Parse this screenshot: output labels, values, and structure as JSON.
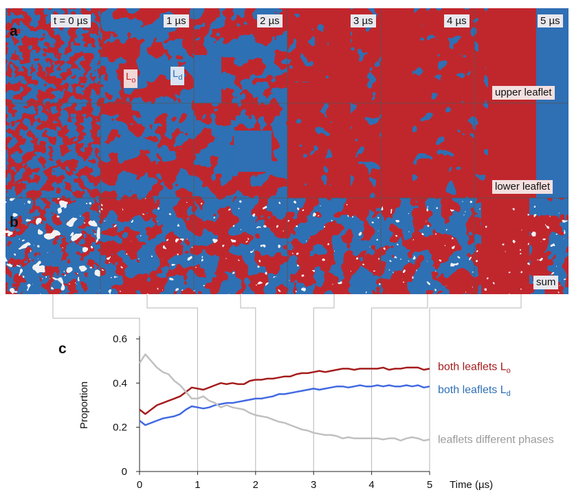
{
  "panels": {
    "a": "a",
    "b": "b",
    "c": "c"
  },
  "timepoints": [
    "t = 0 µs",
    "1 µs",
    "2 µs",
    "3 µs",
    "4 µs",
    "5 µs"
  ],
  "phases": {
    "lo": {
      "base": "L",
      "sub": "o"
    },
    "ld": {
      "base": "L",
      "sub": "d"
    }
  },
  "rows": {
    "upper": "upper leaflet",
    "lower": "lower leaflet",
    "sum": "sum"
  },
  "colors": {
    "lo_red": "#c0272d",
    "ld_blue": "#2f6fb4",
    "mixed_white": "#f2f2f2",
    "line_lo": "#a51c1c",
    "line_ld": "#4169e1",
    "line_diff": "#c0c0c0",
    "label_lo": "#a51c1c",
    "label_ld": "#2f6fb4",
    "label_diff": "#9a9a9a"
  },
  "chart_data": {
    "type": "line",
    "xlabel": "Time (µs)",
    "ylabel": "Proportion",
    "xlim": [
      0,
      5
    ],
    "ylim": [
      0,
      0.6
    ],
    "xticks": [
      "0",
      "1",
      "2",
      "3",
      "4",
      "5"
    ],
    "yticks": [
      "0",
      "0.2",
      "0.4",
      "0.6"
    ],
    "grid": false,
    "legend": "direct labels at line ends",
    "x": [
      0,
      0.1,
      0.2,
      0.3,
      0.4,
      0.5,
      0.6,
      0.7,
      0.8,
      0.9,
      1.0,
      1.1,
      1.2,
      1.3,
      1.4,
      1.5,
      1.6,
      1.7,
      1.8,
      1.9,
      2.0,
      2.1,
      2.2,
      2.3,
      2.4,
      2.5,
      2.6,
      2.7,
      2.8,
      2.9,
      3.0,
      3.1,
      3.2,
      3.3,
      3.4,
      3.5,
      3.6,
      3.7,
      3.8,
      3.9,
      4.0,
      4.1,
      4.2,
      4.3,
      4.4,
      4.5,
      4.6,
      4.7,
      4.8,
      4.9,
      5.0
    ],
    "series": [
      {
        "name_base": "both leaflets L",
        "name_sub": "o",
        "color_key": "line_lo",
        "values": [
          0.28,
          0.26,
          0.28,
          0.3,
          0.31,
          0.32,
          0.33,
          0.34,
          0.36,
          0.38,
          0.375,
          0.37,
          0.38,
          0.39,
          0.4,
          0.395,
          0.4,
          0.395,
          0.395,
          0.41,
          0.415,
          0.415,
          0.42,
          0.42,
          0.425,
          0.43,
          0.43,
          0.44,
          0.445,
          0.445,
          0.45,
          0.455,
          0.45,
          0.455,
          0.46,
          0.465,
          0.465,
          0.46,
          0.465,
          0.465,
          0.465,
          0.465,
          0.47,
          0.46,
          0.465,
          0.465,
          0.47,
          0.47,
          0.47,
          0.46,
          0.465
        ]
      },
      {
        "name_base": "both leaflets L",
        "name_sub": "d",
        "color_key": "line_ld",
        "values": [
          0.23,
          0.21,
          0.22,
          0.23,
          0.24,
          0.245,
          0.25,
          0.26,
          0.28,
          0.295,
          0.29,
          0.285,
          0.29,
          0.3,
          0.305,
          0.31,
          0.31,
          0.315,
          0.32,
          0.325,
          0.33,
          0.33,
          0.335,
          0.34,
          0.35,
          0.35,
          0.355,
          0.36,
          0.365,
          0.37,
          0.375,
          0.37,
          0.375,
          0.38,
          0.385,
          0.385,
          0.38,
          0.385,
          0.39,
          0.385,
          0.385,
          0.39,
          0.385,
          0.39,
          0.385,
          0.385,
          0.39,
          0.385,
          0.39,
          0.38,
          0.385
        ]
      },
      {
        "name": "leaflets different phases",
        "color_key": "line_diff",
        "values": [
          0.49,
          0.53,
          0.5,
          0.47,
          0.45,
          0.44,
          0.41,
          0.39,
          0.36,
          0.33,
          0.33,
          0.34,
          0.32,
          0.31,
          0.29,
          0.3,
          0.29,
          0.285,
          0.28,
          0.265,
          0.255,
          0.25,
          0.245,
          0.235,
          0.225,
          0.22,
          0.21,
          0.2,
          0.19,
          0.185,
          0.175,
          0.17,
          0.165,
          0.165,
          0.16,
          0.15,
          0.155,
          0.15,
          0.15,
          0.15,
          0.15,
          0.15,
          0.145,
          0.15,
          0.15,
          0.14,
          0.15,
          0.155,
          0.15,
          0.14,
          0.145
        ]
      }
    ]
  }
}
